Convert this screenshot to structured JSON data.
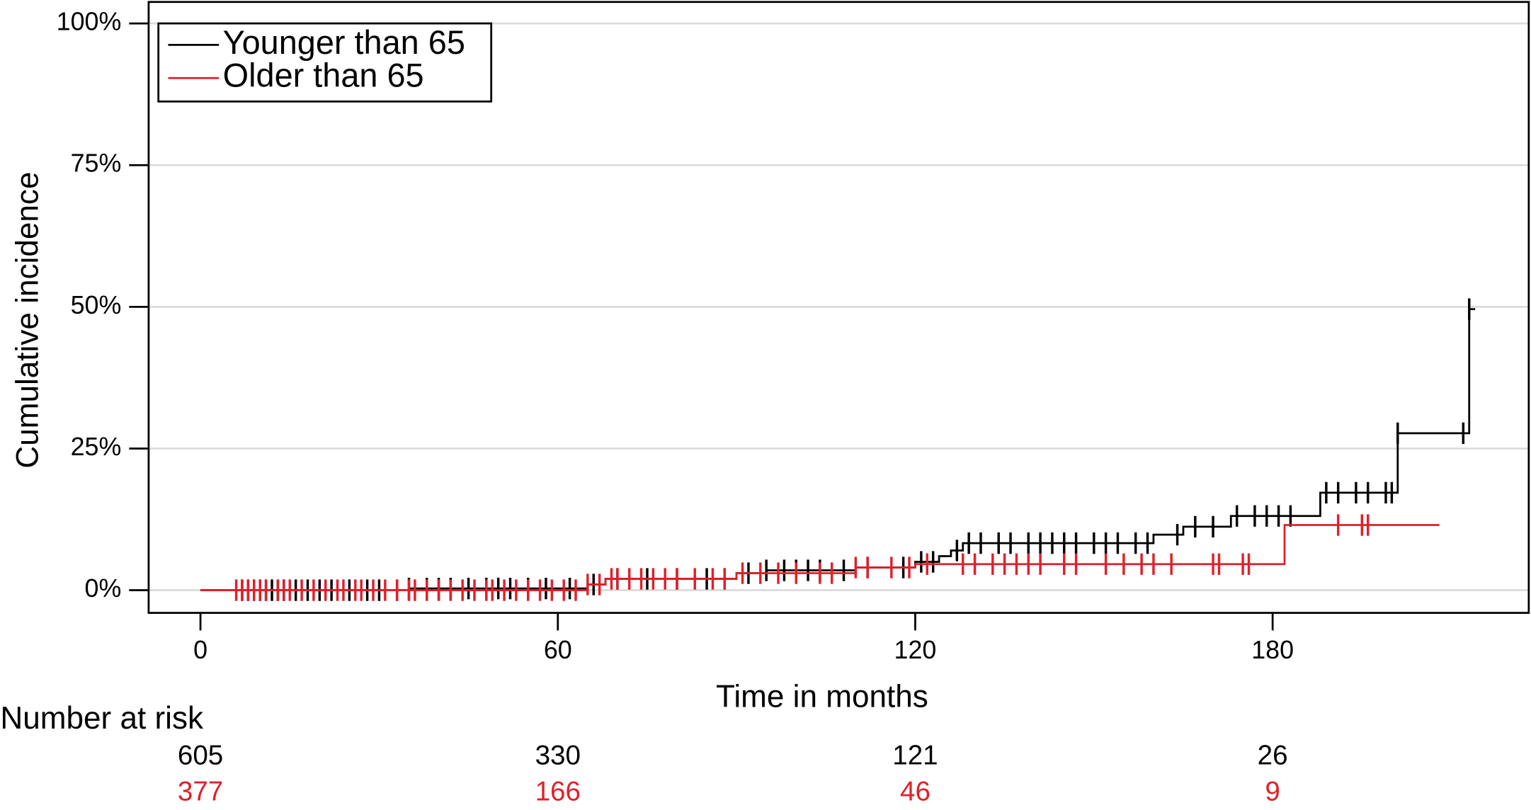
{
  "chart_data": {
    "type": "step",
    "ylabel": "Cumulative incidence",
    "xlabel": "Time in months",
    "xlim": [
      -8.7,
      223
    ],
    "ylim": [
      -4,
      103.8
    ],
    "xticks": [
      0,
      60,
      120,
      180
    ],
    "yticks": [
      {
        "value": 0,
        "label": "0%"
      },
      {
        "value": 25,
        "label": "25%"
      },
      {
        "value": 50,
        "label": "50%"
      },
      {
        "value": 75,
        "label": "75%"
      },
      {
        "value": 100,
        "label": "100%"
      }
    ],
    "grid": true,
    "legend": "upper left",
    "series": [
      {
        "name": "Younger than 65",
        "color": "#000000",
        "x": [
          0,
          35,
          65,
          68,
          90,
          95,
          110,
          120,
          124,
          126,
          128,
          160,
          165,
          173,
          188,
          201,
          213,
          214
        ],
        "values": [
          0,
          0.3,
          1,
          2,
          3,
          3.5,
          4,
          5,
          6,
          7,
          8.3,
          9.8,
          11.2,
          13.1,
          17.2,
          27.7,
          49.6,
          49.6
        ],
        "censored": [
          7,
          8,
          9,
          10,
          11,
          12,
          13,
          14,
          16,
          18,
          20,
          22,
          25,
          28,
          30,
          33,
          35,
          38,
          40,
          42,
          45,
          48,
          50,
          52,
          55,
          58,
          62,
          66,
          70,
          75,
          80,
          85,
          88,
          92,
          95,
          98,
          100,
          102,
          104,
          108,
          112,
          118,
          121,
          123,
          127,
          129,
          131,
          134,
          136,
          139,
          141,
          143,
          145,
          147,
          150,
          152,
          154,
          157,
          159,
          164,
          167,
          170,
          174,
          177,
          179,
          181,
          183,
          189,
          191,
          194,
          196,
          199,
          200,
          201,
          212,
          213
        ]
      },
      {
        "name": "Older than 65",
        "color": "#e0202a",
        "x": [
          0,
          65,
          68,
          90,
          110,
          120,
          182,
          208
        ],
        "values": [
          0,
          1,
          2,
          3,
          4,
          4.6,
          11.5,
          11.5
        ],
        "censored": [
          6,
          7,
          8,
          9,
          10,
          11,
          13,
          14,
          15,
          17,
          19,
          21,
          23,
          24,
          26,
          27,
          29,
          31,
          33,
          35,
          36,
          38,
          40,
          42,
          44,
          46,
          48,
          49,
          51,
          53,
          55,
          57,
          59,
          61,
          63,
          65,
          67,
          69,
          70,
          72,
          74,
          76,
          78,
          80,
          83,
          86,
          88,
          91,
          94,
          97,
          100,
          104,
          106,
          110,
          112,
          116,
          119,
          122,
          128,
          130,
          133,
          135,
          137,
          139,
          141,
          145,
          147,
          152,
          155,
          158,
          160,
          163,
          170,
          171,
          175,
          176,
          191,
          195,
          196
        ]
      }
    ],
    "risk_table": {
      "title": "Number at risk",
      "rows": [
        {
          "color": "#000000",
          "values": [
            "605",
            "330",
            "121",
            "26"
          ]
        },
        {
          "color": "#e0202a",
          "values": [
            "377",
            "166",
            "46",
            "9"
          ]
        }
      ]
    }
  }
}
